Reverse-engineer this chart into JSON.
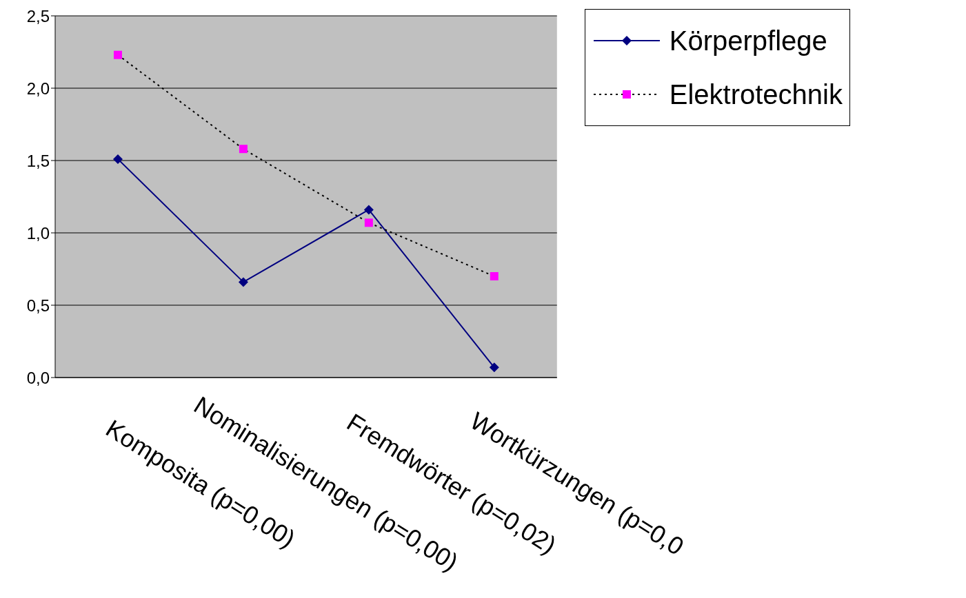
{
  "chart_data": {
    "type": "line",
    "categories": [
      "Komposita (p=0,00)",
      "Nominalisierungen (p=0,00)",
      "Fremdwörter (p=0,02)",
      "Wortkürzungen (p=0,0"
    ],
    "series": [
      {
        "name": "Körperpflege",
        "color": "#000080",
        "values": [
          1.51,
          0.66,
          1.16,
          0.07
        ],
        "marker": "diamond",
        "line_style": "solid"
      },
      {
        "name": "Elektrotechnik",
        "color": "#ff00ff",
        "values": [
          2.23,
          1.58,
          1.07,
          0.7
        ],
        "marker": "square",
        "line_style": "dotted"
      }
    ],
    "ylim": [
      0,
      2.5
    ],
    "yticks": [
      {
        "value": 0,
        "label": "0,0"
      },
      {
        "value": 0.5,
        "label": "0,5"
      },
      {
        "value": 1,
        "label": "1,0"
      },
      {
        "value": 1.5,
        "label": "1,5"
      },
      {
        "value": 2,
        "label": "2,0"
      },
      {
        "value": 2.5,
        "label": "2,5"
      }
    ],
    "grid": "y",
    "legend": "top right"
  }
}
